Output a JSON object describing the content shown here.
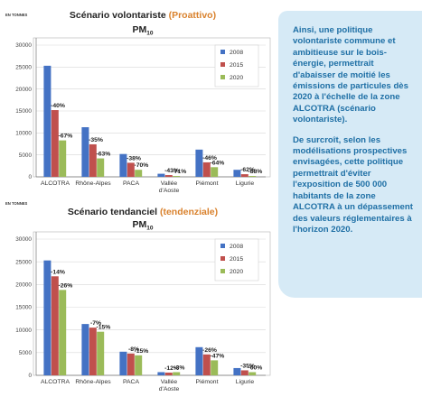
{
  "unit_label": "EN TONNES",
  "sidebar": {
    "paragraph1": "Ainsi, une politique volontariste commune et ambitieuse sur le bois-énergie, permettrait d'abaisser de moitié les émissions de particules dès 2020 à l'échelle de la zone ALCOTRA (scénario volontariste).",
    "paragraph2": "De surcroît, selon les modélisations prospectives envisagées, cette politique permettrait d'éviter l'exposition de 500 000 habitants de la zone ALCOTRA à un dépassement des valeurs réglementaires à l'horizon 2020."
  },
  "colors": {
    "2008": "#4472c4",
    "2015": "#c0504d",
    "2020": "#9bbb59",
    "title_accent": "#d9812c"
  },
  "chart_data": [
    {
      "type": "bar",
      "title": "Scénario volontariste",
      "title_accent": "(Proattivo)",
      "subtitle": "PM",
      "subtitle_sub": "10",
      "categories": [
        "ALCOTRA",
        "Rhône-Alpes",
        "PACA",
        "Vallée\nd'Aoste",
        "Piémont",
        "Ligurie"
      ],
      "series": [
        {
          "name": "2008",
          "values": [
            25300,
            11300,
            5200,
            700,
            6200,
            1600
          ]
        },
        {
          "name": "2015",
          "values": [
            15200,
            7400,
            3200,
            400,
            3300,
            600
          ]
        },
        {
          "name": "2020",
          "values": [
            8300,
            4200,
            1600,
            200,
            2200,
            200
          ]
        }
      ],
      "labels": [
        {
          "category": 0,
          "series": 2,
          "text": "-67%"
        },
        {
          "category": 0,
          "series": 1,
          "text": "-40%"
        },
        {
          "category": 1,
          "series": 1,
          "text": "-35%"
        },
        {
          "category": 1,
          "series": 2,
          "text": "-63%"
        },
        {
          "category": 2,
          "series": 1,
          "text": "-38%"
        },
        {
          "category": 2,
          "series": 2,
          "text": "-70%"
        },
        {
          "category": 3,
          "series": 1,
          "text": "-43%"
        },
        {
          "category": 3,
          "series": 2,
          "text": "-71%"
        },
        {
          "category": 4,
          "series": 1,
          "text": "-46%"
        },
        {
          "category": 4,
          "series": 2,
          "text": "-64%"
        },
        {
          "category": 5,
          "series": 1,
          "text": "-62%"
        },
        {
          "category": 5,
          "series": 2,
          "text": "-88%"
        }
      ],
      "ylim": [
        0,
        30000
      ],
      "yticks": [
        0,
        5000,
        10000,
        15000,
        20000,
        25000,
        30000
      ],
      "grid": true,
      "legend": "top-right"
    },
    {
      "type": "bar",
      "title": "Scénario tendanciel",
      "title_accent": "(tendenziale)",
      "subtitle": "PM",
      "subtitle_sub": "10",
      "categories": [
        "ALCOTRA",
        "Rhône-Alpes",
        "PACA",
        "Vallée\nd'Aoste",
        "Piémont",
        "Ligurie"
      ],
      "series": [
        {
          "name": "2008",
          "values": [
            25300,
            11300,
            5200,
            700,
            6200,
            1600
          ]
        },
        {
          "name": "2015",
          "values": [
            21800,
            10500,
            4800,
            600,
            4600,
            1100
          ]
        },
        {
          "name": "2020",
          "values": [
            18800,
            9600,
            4400,
            700,
            3300,
            700
          ]
        }
      ],
      "labels": [
        {
          "category": 0,
          "series": 1,
          "text": "-14%"
        },
        {
          "category": 0,
          "series": 2,
          "text": "-26%"
        },
        {
          "category": 1,
          "series": 1,
          "text": "-7%"
        },
        {
          "category": 1,
          "series": 2,
          "text": "-15%"
        },
        {
          "category": 2,
          "series": 1,
          "text": "-8%"
        },
        {
          "category": 2,
          "series": 2,
          "text": "-15%"
        },
        {
          "category": 3,
          "series": 1,
          "text": "-12%"
        },
        {
          "category": 3,
          "series": 2,
          "text": "-3%"
        },
        {
          "category": 4,
          "series": 1,
          "text": "-26%"
        },
        {
          "category": 4,
          "series": 2,
          "text": "-47%"
        },
        {
          "category": 5,
          "series": 1,
          "text": "-35%"
        },
        {
          "category": 5,
          "series": 2,
          "text": "-60%"
        }
      ],
      "ylim": [
        0,
        30000
      ],
      "yticks": [
        0,
        5000,
        10000,
        15000,
        20000,
        25000,
        30000
      ],
      "grid": true,
      "legend": "top-right"
    }
  ]
}
